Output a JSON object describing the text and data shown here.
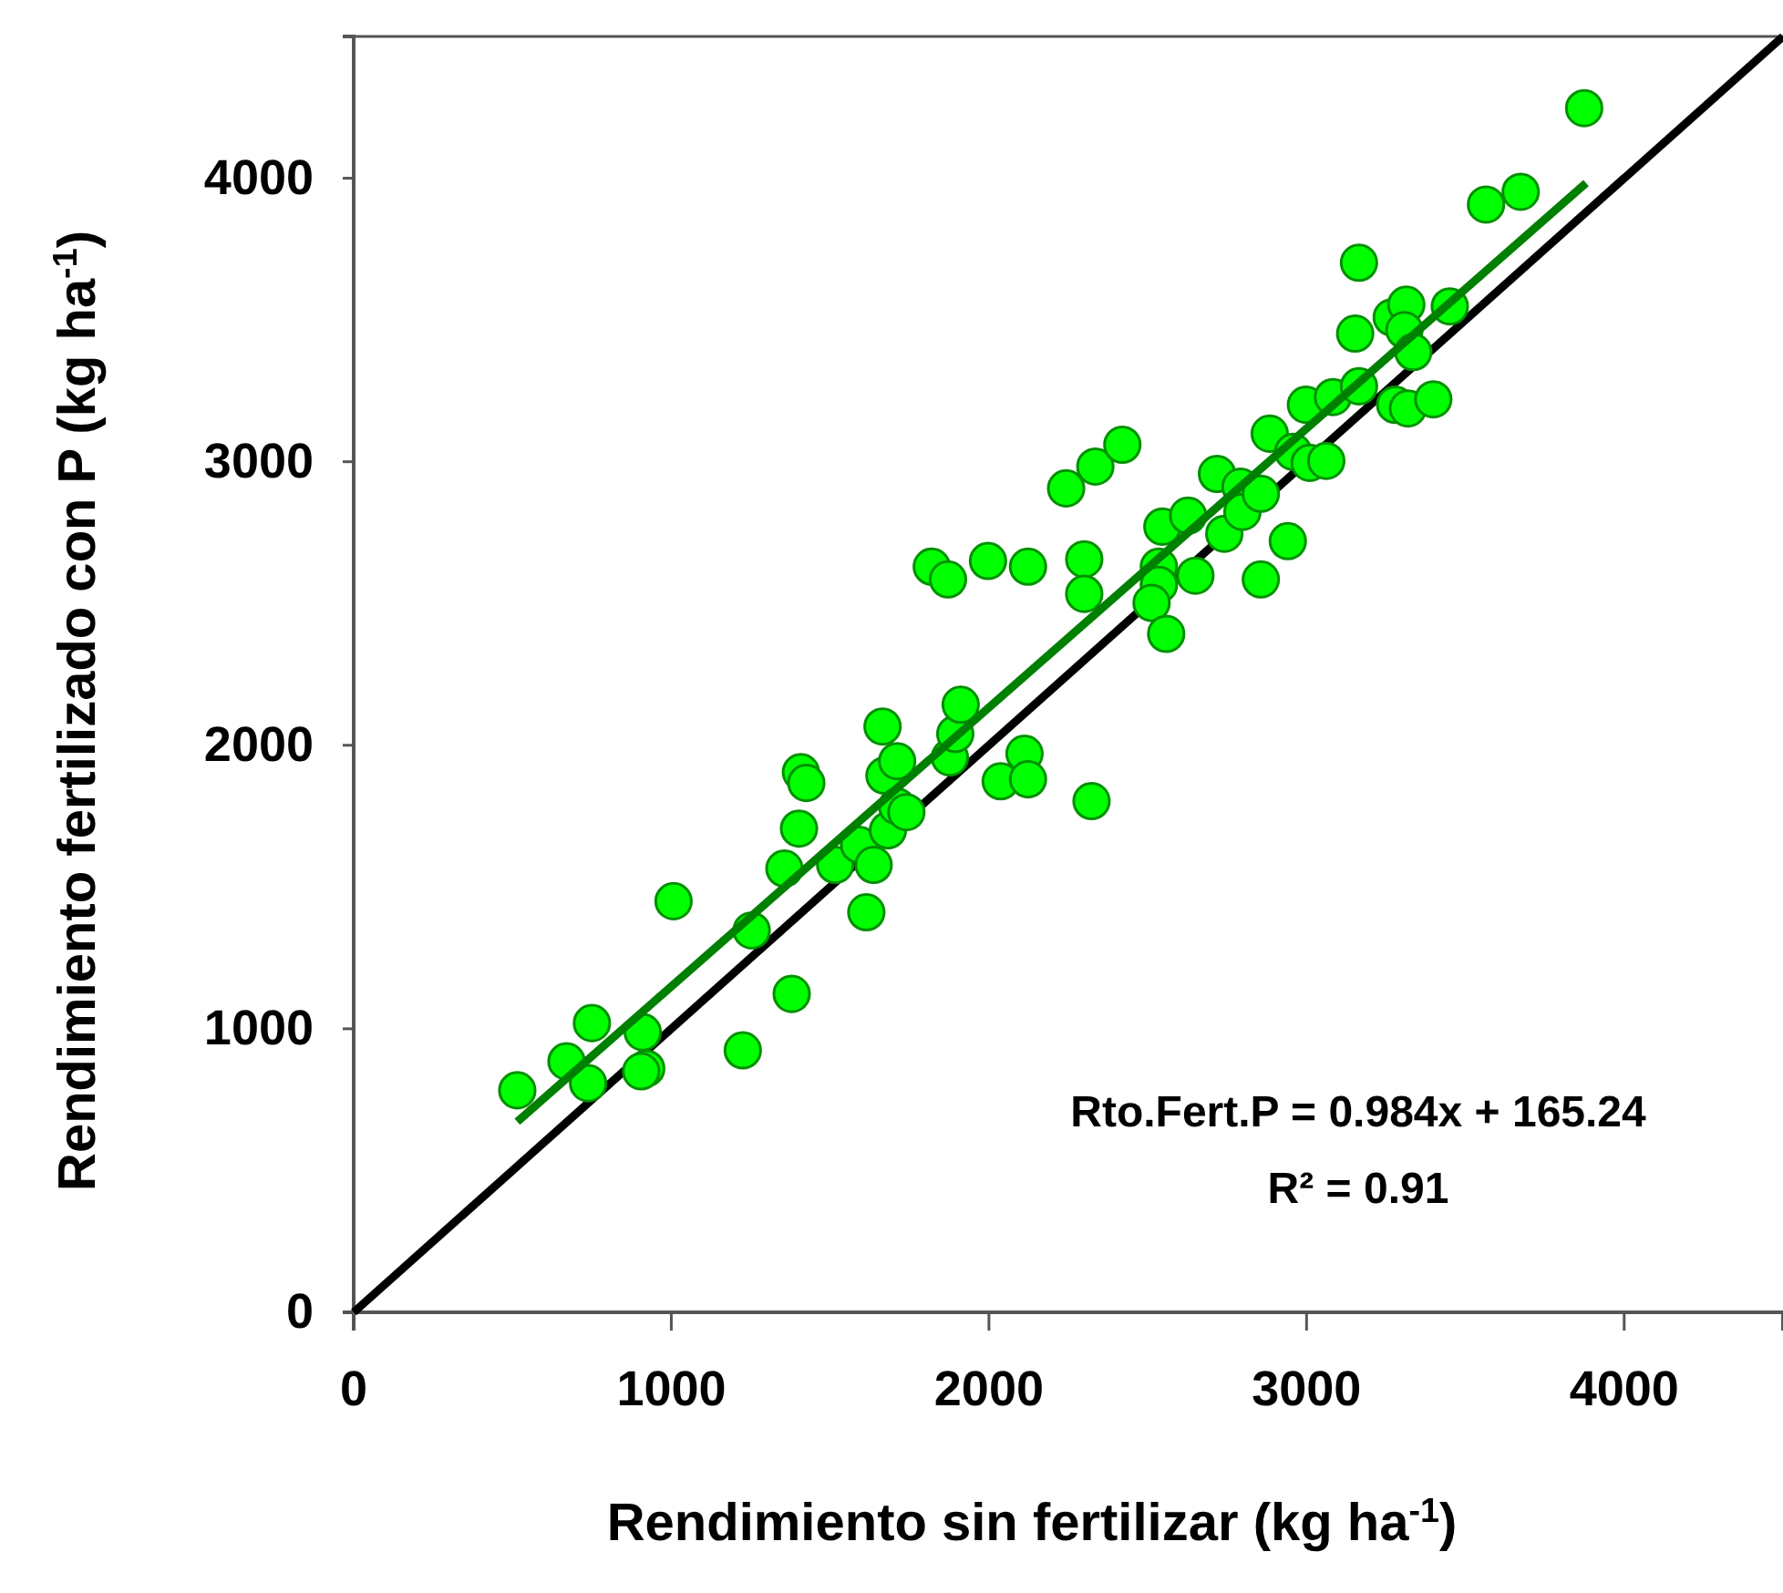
{
  "chart_data": {
    "type": "scatter",
    "xlabel": "Rendimiento sin fertilizar (kg ha$^{-1}$)",
    "ylabel": "Rendimiento fertilizado con P (kg ha$^{-1}$)",
    "xlim": [
      0,
      4500
    ],
    "ylim": [
      0,
      4500
    ],
    "xticks": [
      0,
      1000,
      2000,
      3000,
      4000
    ],
    "yticks": [
      0,
      1000,
      2000,
      3000,
      4000
    ],
    "grid": false,
    "marker": "circle",
    "series": [
      {
        "type": "line",
        "marker": "none",
        "color": "#000000",
        "x": [
          0,
          4500
        ],
        "values": [
          0,
          4500
        ]
      },
      {
        "color": "#00ff00",
        "x": [
          515,
          670,
          750,
          738,
          910,
          921,
          905,
          1007,
          1225,
          1253,
          1379,
          1356,
          1402,
          1408,
          1425,
          1516,
          1614,
          1591,
          1637,
          1665,
          1671,
          1682,
          1711,
          1711,
          1740,
          1877,
          1894,
          1911,
          2037,
          2112,
          2123,
          1820,
          1871,
          1997,
          2123,
          2243,
          2335,
          2420,
          2323,
          2300,
          2300,
          2535,
          2535,
          2512,
          2558,
          2650,
          2546,
          2627,
          2741,
          2718,
          2792,
          2798,
          2856,
          2856,
          2941,
          2884,
          2958,
          3010,
          3062,
          2998,
          3083,
          3165,
          3153,
          3165,
          3268,
          3314,
          3308,
          3336,
          3451,
          3279,
          3319,
          3399,
          3565,
          3674,
          3874
        ],
        "values": [
          783,
          885,
          1020,
          808,
          988,
          860,
          850,
          1450,
          924,
          1347,
          1123,
          1565,
          1706,
          1905,
          1867,
          1578,
          1411,
          1649,
          1578,
          2066,
          1893,
          1700,
          1944,
          1784,
          1764,
          1957,
          2040,
          2143,
          1873,
          1970,
          1880,
          2630,
          2585,
          2650,
          2630,
          2906,
          2983,
          3060,
          1803,
          2656,
          2534,
          2630,
          2566,
          2502,
          2393,
          2598,
          2771,
          2810,
          2746,
          2957,
          2912,
          2823,
          2887,
          2585,
          2720,
          3099,
          3035,
          2996,
          3003,
          3201,
          3228,
          3266,
          3452,
          3702,
          3509,
          3554,
          3464,
          3387,
          3548,
          3201,
          3188,
          3220,
          3907,
          3952,
          4247
        ]
      },
      {
        "type": "line",
        "marker": "none",
        "color": "#008000",
        "x": [
          515,
          3880
        ],
        "values": [
          672,
          3983
        ]
      }
    ],
    "annotations": [
      "Rto.Fert.P = 0.984x + 165.24",
      "R² = 0.91"
    ]
  }
}
